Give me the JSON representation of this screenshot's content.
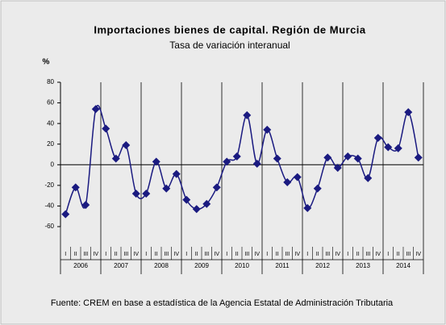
{
  "chart_data": {
    "type": "line",
    "title": "Importaciones bienes de capital. Región de Murcia",
    "subtitle": "Tasa de variación interanual",
    "y_label": "%",
    "categories": [
      "I",
      "II",
      "III",
      "IV",
      "I",
      "II",
      "III",
      "IV",
      "I",
      "II",
      "III",
      "IV",
      "I",
      "II",
      "III",
      "IV",
      "I",
      "II",
      "III",
      "IV",
      "I",
      "II",
      "III",
      "IV",
      "I",
      "II",
      "III",
      "IV",
      "I",
      "II",
      "III",
      "IV",
      "I",
      "II",
      "III",
      "IV"
    ],
    "groups": [
      "2006",
      "2007",
      "2008",
      "2009",
      "2010",
      "2011",
      "2012",
      "2013",
      "2014"
    ],
    "values": [
      -48,
      -22,
      -39,
      54,
      35,
      6,
      19,
      -28,
      -28,
      3,
      -23,
      -9,
      -34,
      -43,
      -38,
      -22,
      3,
      8,
      48,
      1,
      34,
      6,
      -17,
      -12,
      -42,
      -23,
      7,
      -3,
      8,
      6,
      -13,
      26,
      17,
      16,
      51,
      7
    ],
    "color": "#1a1a80",
    "ylim": [
      -60,
      80
    ],
    "yticks": [
      -60,
      -40,
      -20,
      0,
      20,
      40,
      60,
      80
    ],
    "source": "Fuente: CREM  en base a estadística de la Agencia Estatal de Administración Tributaria"
  }
}
